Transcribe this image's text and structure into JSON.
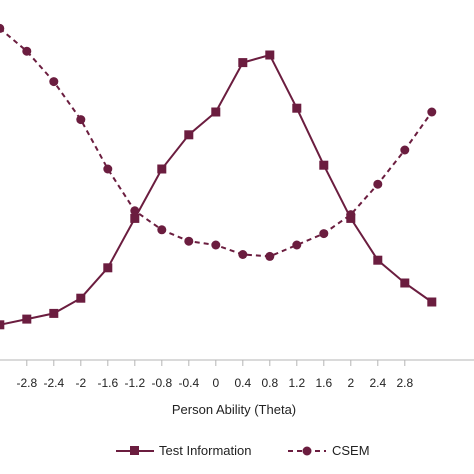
{
  "chart_data": {
    "type": "line",
    "title": "",
    "xlabel": "Person Ability (Theta)",
    "ylabel": "",
    "x": [
      -3.2,
      -2.8,
      -2.4,
      -2.0,
      -1.6,
      -1.2,
      -0.8,
      -0.4,
      0.0,
      0.4,
      0.8,
      1.2,
      1.6,
      2.0,
      2.4,
      2.8,
      3.2
    ],
    "xticks": [
      "-2.8",
      "-2.4",
      "-2",
      "-1.6",
      "-1.2",
      "-0.8",
      "-0.4",
      "0",
      "0.4",
      "0.8",
      "1.2",
      "1.6",
      "2",
      "2.4",
      "2.8"
    ],
    "xlim": [
      -3.2,
      3.2
    ],
    "ylim": [
      0,
      1
    ],
    "grid": false,
    "legend_position": "bottom",
    "series": [
      {
        "name": "Test Information",
        "style": "solid",
        "marker": "square",
        "values": [
          0.14,
          0.155,
          0.17,
          0.21,
          0.29,
          0.42,
          0.55,
          0.64,
          0.7,
          0.83,
          0.85,
          0.71,
          0.56,
          0.42,
          0.31,
          0.25,
          0.2
        ]
      },
      {
        "name": "CSEM",
        "style": "dashed",
        "marker": "circle",
        "values": [
          0.92,
          0.86,
          0.78,
          0.68,
          0.55,
          0.44,
          0.39,
          0.36,
          0.35,
          0.325,
          0.32,
          0.35,
          0.38,
          0.43,
          0.51,
          0.6,
          0.7
        ]
      }
    ],
    "colors": {
      "line": "#6b1d3f"
    }
  }
}
